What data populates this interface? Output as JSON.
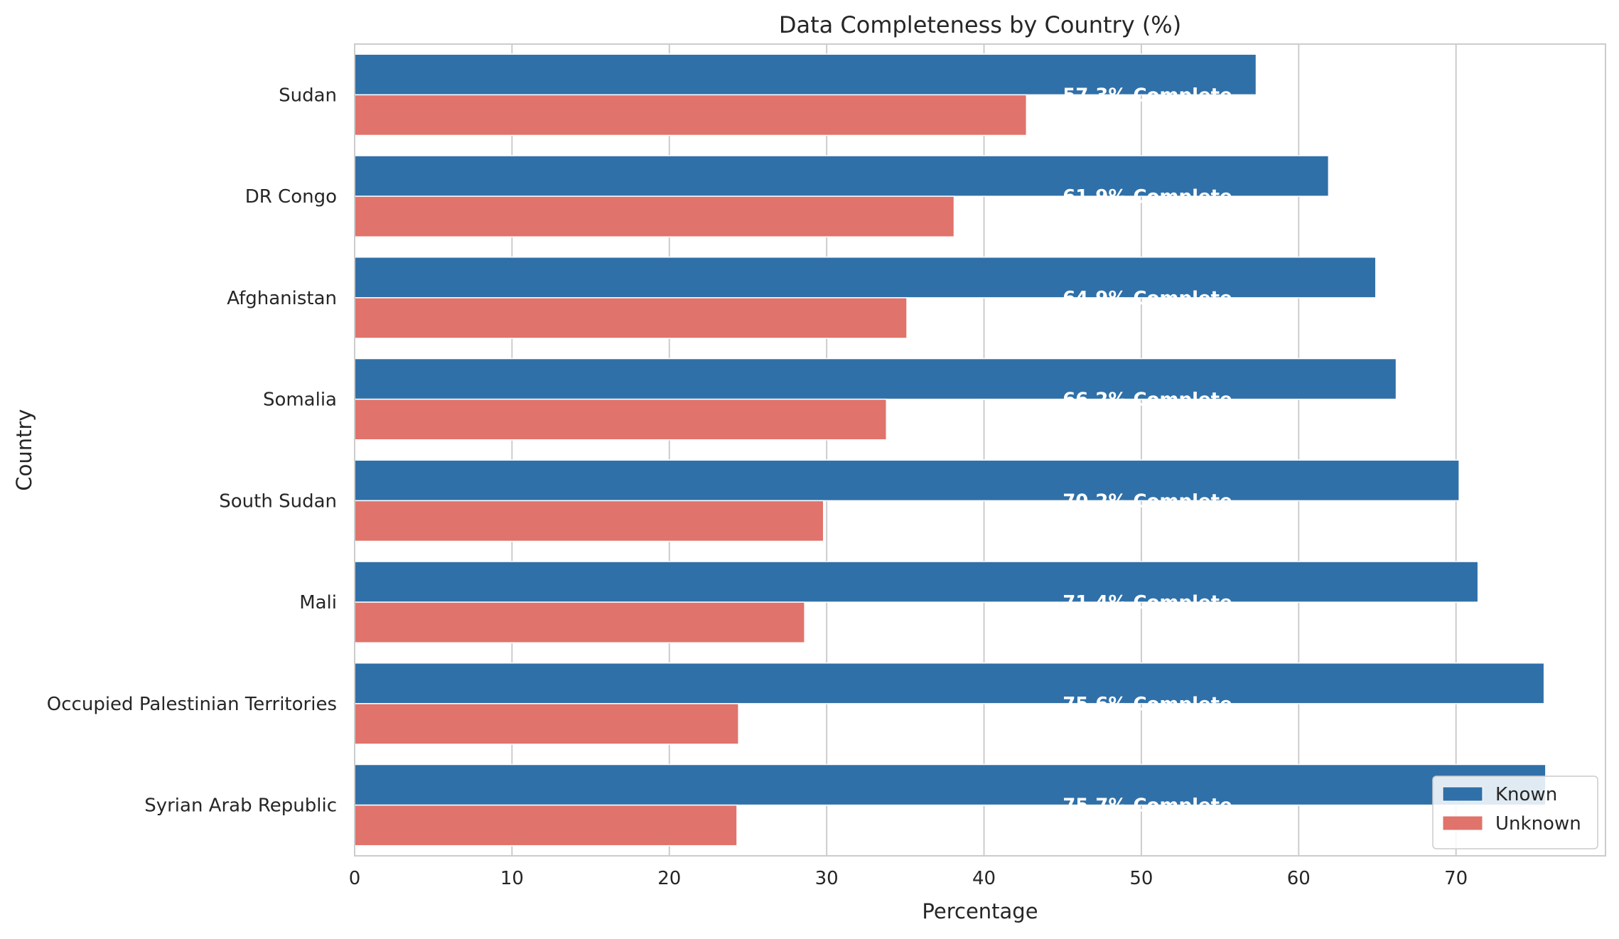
{
  "chart_data": {
    "type": "bar",
    "orientation": "horizontal",
    "title": "Data Completeness by Country (%)",
    "xlabel": "Percentage",
    "ylabel": "Country",
    "xlim": [
      0,
      79.5
    ],
    "xticks": [
      0,
      10,
      20,
      30,
      40,
      50,
      60,
      70
    ],
    "grid": true,
    "legend_position": "bottom-right",
    "categories": [
      "Sudan",
      "DR Congo",
      "Afghanistan",
      "Somalia",
      "South Sudan",
      "Mali",
      "Occupied Palestinian Territories",
      "Syrian Arab Republic"
    ],
    "series": [
      {
        "name": "Known",
        "color": "#3070a8",
        "values": [
          57.3,
          61.9,
          64.9,
          66.2,
          70.2,
          71.4,
          75.6,
          75.7
        ]
      },
      {
        "name": "Unknown",
        "color": "#e0736b",
        "values": [
          42.7,
          38.1,
          35.1,
          33.8,
          29.8,
          28.6,
          24.4,
          24.3
        ]
      }
    ],
    "bar_labels": [
      "57.3% Complete",
      "61.9% Complete",
      "64.9% Complete",
      "66.2% Complete",
      "70.2% Complete",
      "71.4% Complete",
      "75.6% Complete",
      "75.7% Complete"
    ],
    "bar_label_x": 45
  }
}
